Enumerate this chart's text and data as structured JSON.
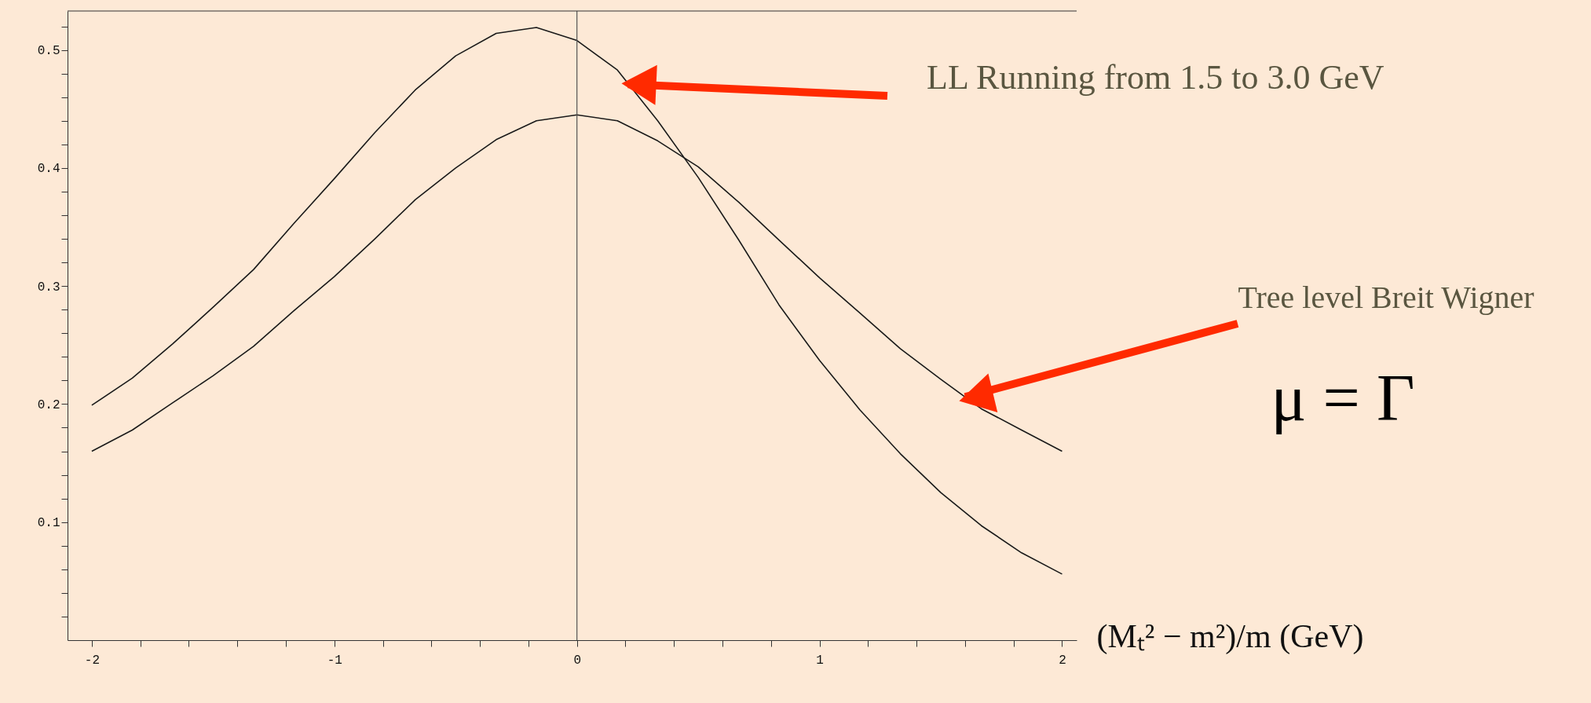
{
  "chart_data": {
    "type": "line",
    "x": [
      -2,
      -1.833,
      -1.667,
      -1.5,
      -1.333,
      -1.167,
      -1,
      -0.833,
      -0.667,
      -0.5,
      -0.333,
      -0.167,
      0,
      0.167,
      0.333,
      0.5,
      0.667,
      0.833,
      1,
      1.167,
      1.333,
      1.5,
      1.667,
      1.833,
      2
    ],
    "series": [
      {
        "color": "#1a1a1a",
        "values": [
          0.199,
          0.222,
          0.251,
          0.282,
          0.314,
          0.353,
          0.391,
          0.43,
          0.466,
          0.495,
          0.514,
          0.519,
          0.508,
          0.483,
          0.44,
          0.392,
          0.339,
          0.284,
          0.237,
          0.195,
          0.158,
          0.125,
          0.097,
          0.074,
          0.056
        ]
      },
      {
        "color": "#1a1a1a",
        "values": [
          0.16,
          0.178,
          0.201,
          0.224,
          0.249,
          0.279,
          0.308,
          0.34,
          0.373,
          0.4,
          0.424,
          0.44,
          0.445,
          0.44,
          0.423,
          0.401,
          0.371,
          0.339,
          0.307,
          0.277,
          0.247,
          0.221,
          0.196,
          0.178,
          0.16
        ]
      }
    ],
    "xlim": [
      -2.1,
      2.06
    ],
    "ylim": [
      0,
      0.533
    ],
    "xticks": [
      -2,
      {
        "value": -1.8,
        "label": null
      },
      {
        "value": -1.6,
        "label": null
      },
      {
        "value": -1.4,
        "label": null
      },
      {
        "value": -1.2,
        "label": null
      },
      -1,
      {
        "value": -0.8,
        "label": null
      },
      {
        "value": -0.6,
        "label": null
      },
      {
        "value": -0.4,
        "label": null
      },
      {
        "value": -0.2,
        "label": null
      },
      0,
      {
        "value": 0.2,
        "label": null
      },
      {
        "value": 0.4,
        "label": null
      },
      {
        "value": 0.6,
        "label": null
      },
      {
        "value": 0.8,
        "label": null
      },
      1,
      {
        "value": 1.2,
        "label": null
      },
      {
        "value": 1.4,
        "label": null
      },
      {
        "value": 1.6,
        "label": null
      },
      {
        "value": 1.8,
        "label": null
      },
      2
    ],
    "yticks": [
      {
        "value": 0.02,
        "label": null
      },
      {
        "value": 0.04,
        "label": null
      },
      {
        "value": 0.06,
        "label": null
      },
      {
        "value": 0.08,
        "label": null
      },
      0.1,
      {
        "value": 0.12,
        "label": null
      },
      {
        "value": 0.14,
        "label": null
      },
      {
        "value": 0.16,
        "label": null
      },
      {
        "value": 0.18,
        "label": null
      },
      0.2,
      {
        "value": 0.22,
        "label": null
      },
      {
        "value": 0.24,
        "label": null
      },
      {
        "value": 0.26,
        "label": null
      },
      {
        "value": 0.28,
        "label": null
      },
      0.3,
      {
        "value": 0.32,
        "label": null
      },
      {
        "value": 0.34,
        "label": null
      },
      {
        "value": 0.36,
        "label": null
      },
      {
        "value": 0.38,
        "label": null
      },
      0.4,
      {
        "value": 0.42,
        "label": null
      },
      {
        "value": 0.44,
        "label": null
      },
      {
        "value": 0.46,
        "label": null
      },
      {
        "value": 0.48,
        "label": null
      },
      0.5,
      {
        "value": 0.52,
        "label": null
      }
    ],
    "xlabel": "(Mₜ² − m²)/m  (GeV)",
    "ref_lines": [
      {
        "axis": "x",
        "value": 0,
        "color": "#555555"
      }
    ],
    "annotations": [
      {
        "text": "LL Running from 1.5 to 3.0 GeV",
        "x": 0.21,
        "y": 0.471
      },
      {
        "text": "Tree level Breit Wigner",
        "x": 1.6,
        "y": 0.206
      },
      "μ = Γ"
    ],
    "grid": false,
    "marker": "none",
    "line_style": "solid"
  }
}
